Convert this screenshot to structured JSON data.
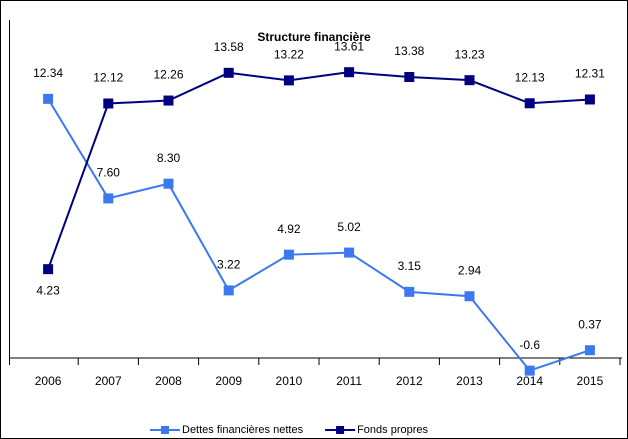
{
  "chart_data": {
    "type": "line",
    "title": "Structure financière",
    "categories": [
      "2006",
      "2007",
      "2008",
      "2009",
      "2010",
      "2011",
      "2012",
      "2013",
      "2014",
      "2015"
    ],
    "series": [
      {
        "name": "Dettes financières nettes",
        "color": "#3c78f0",
        "values": [
          12.34,
          7.6,
          8.3,
          3.22,
          4.92,
          5.02,
          3.15,
          2.94,
          -0.6,
          0.37
        ],
        "value_labels": [
          "12.34",
          "7.60",
          "8.30",
          "3.22",
          "4.92",
          "5.02",
          "3.15",
          "2.94",
          "-0.6",
          "0.37"
        ]
      },
      {
        "name": "Fonds propres",
        "color": "#000080",
        "values": [
          4.23,
          12.12,
          12.26,
          13.58,
          13.22,
          13.61,
          13.38,
          13.23,
          12.13,
          12.31
        ],
        "value_labels": [
          "4.23",
          "12.12",
          "12.26",
          "13.58",
          "13.22",
          "13.61",
          "13.38",
          "13.23",
          "12.13",
          "12.31"
        ]
      }
    ],
    "ylim": [
      -1,
      15
    ],
    "legend": "bottom"
  }
}
